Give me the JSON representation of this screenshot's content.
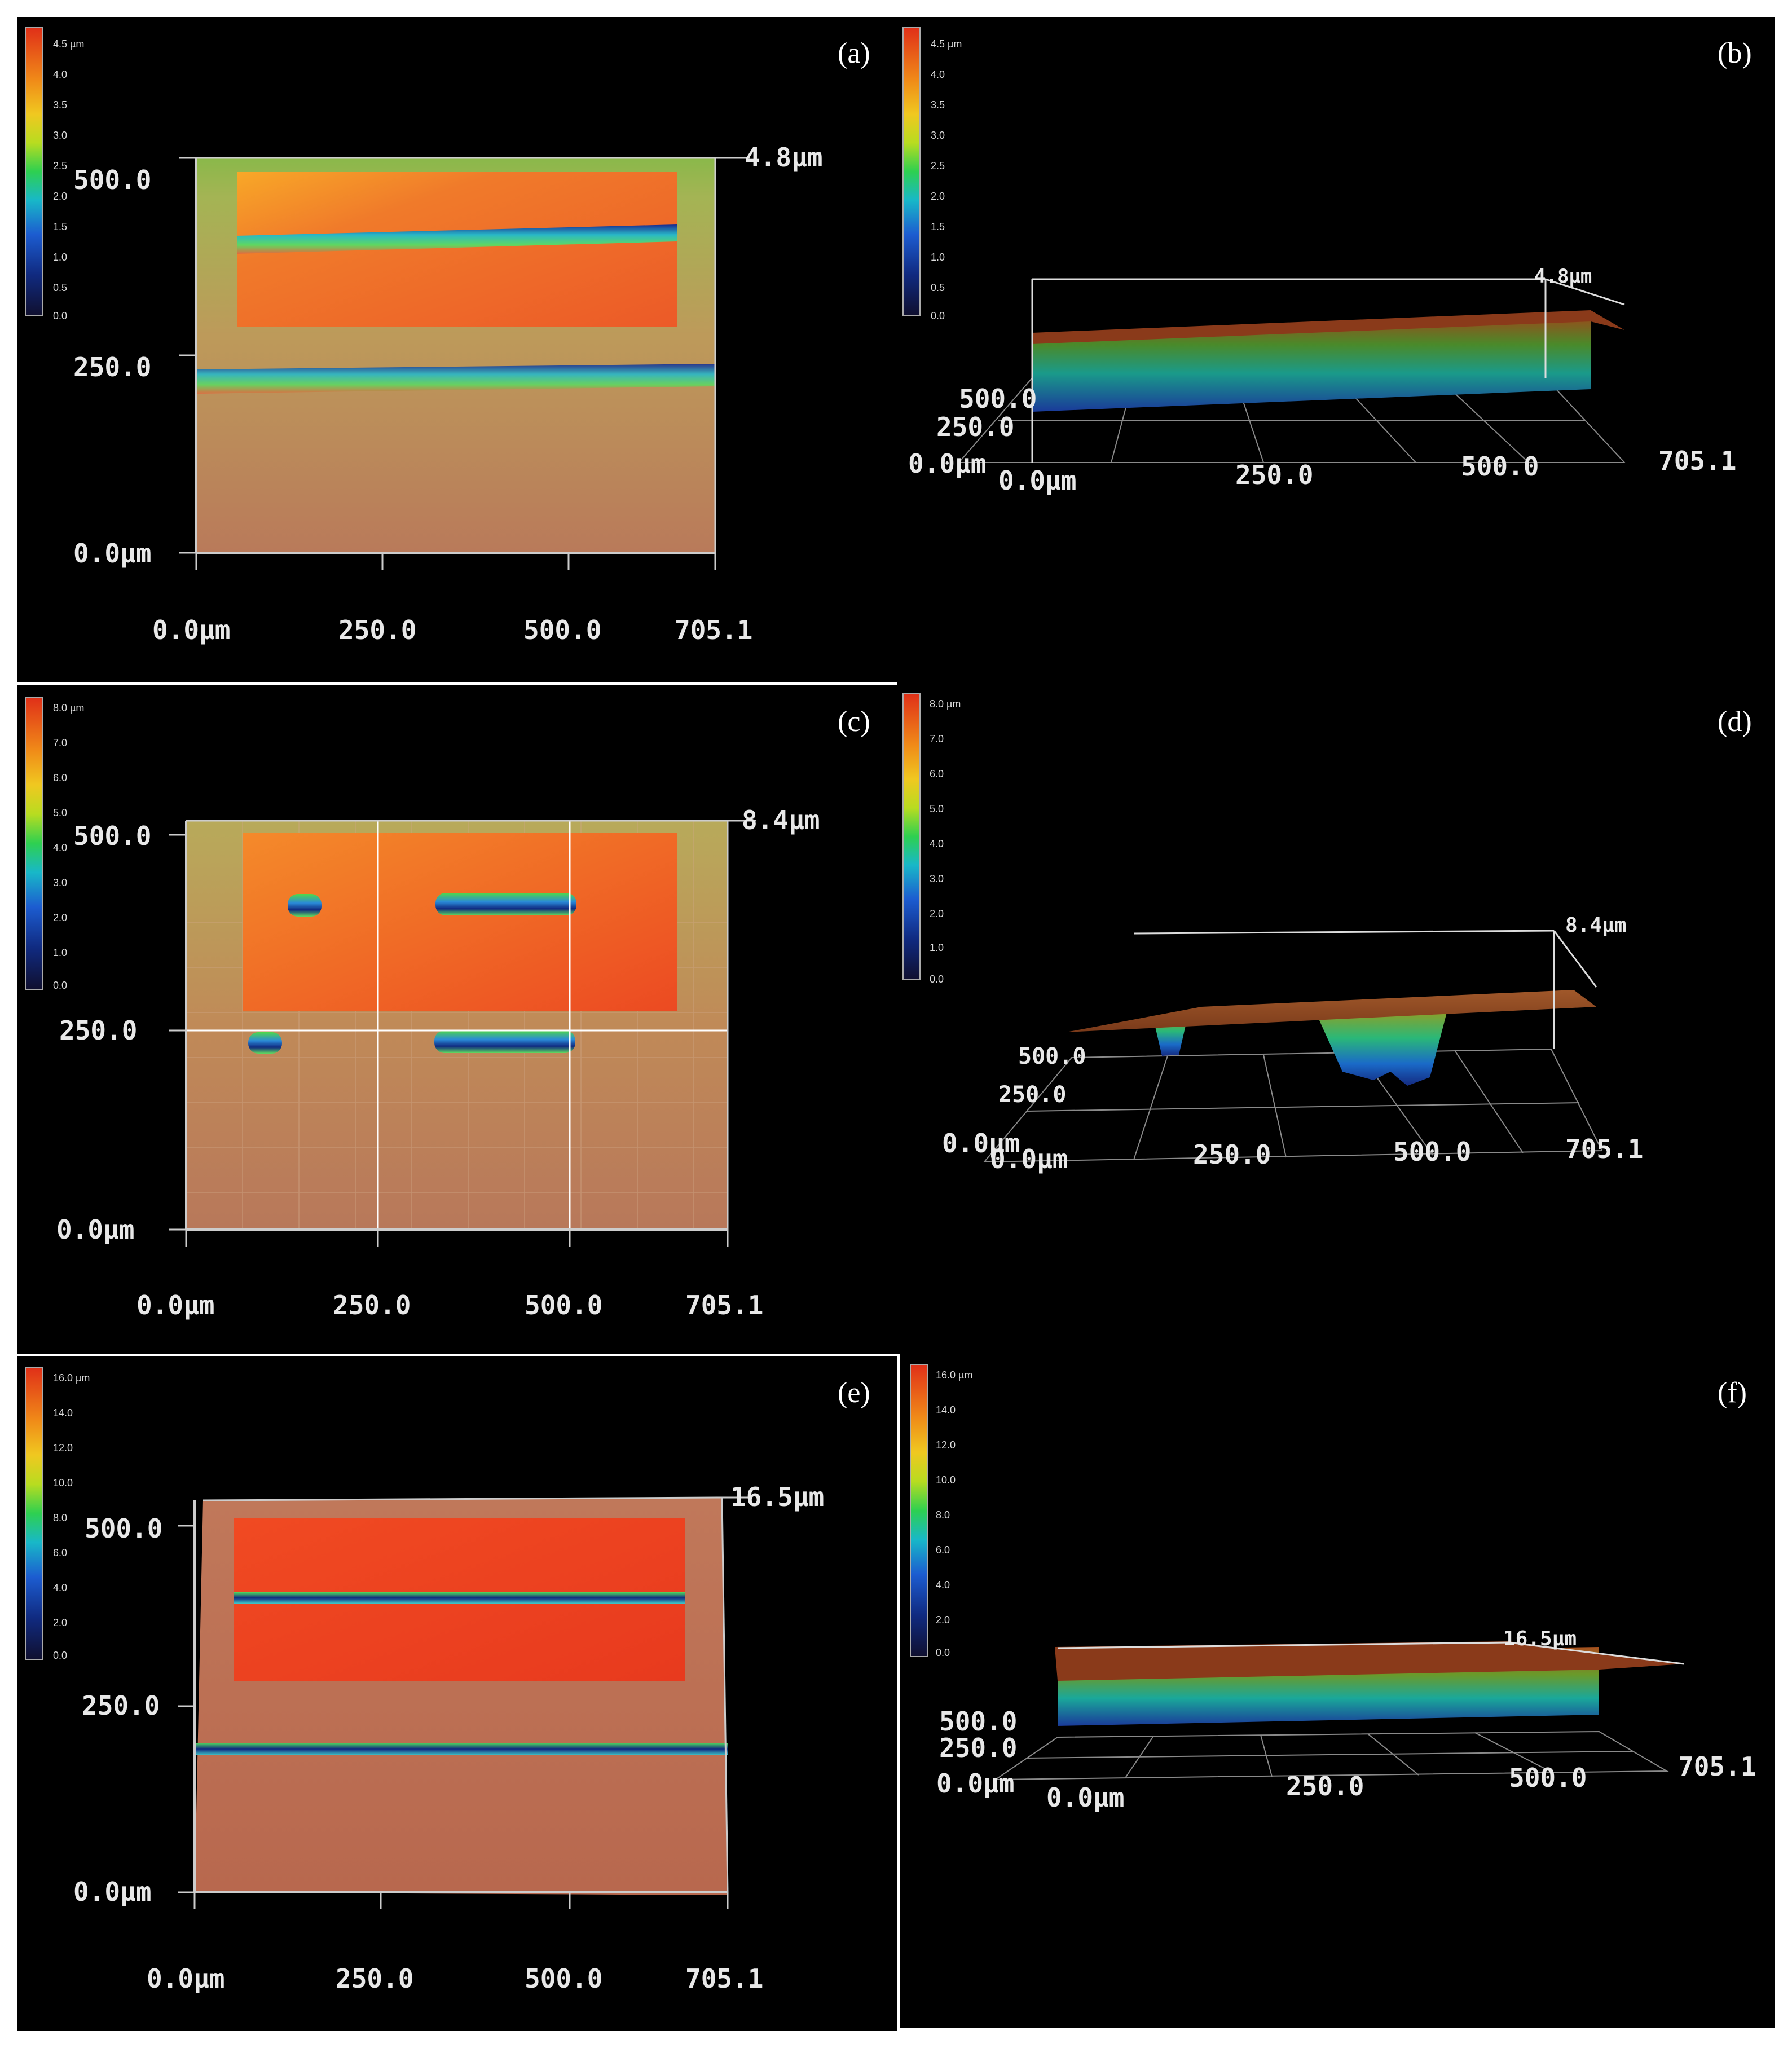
{
  "panels": [
    {
      "id": "a",
      "label": "(a)",
      "view": "2d",
      "colorbar": [
        "4.5 µm",
        "4.0",
        "3.5",
        "3.0",
        "2.5",
        "2.0",
        "1.5",
        "1.0",
        "0.5",
        "0.0"
      ],
      "max_height": "4.8µm",
      "x_ticks": [
        "0.0µm",
        "250.0",
        "500.0",
        "705.1"
      ],
      "y_ticks": [
        "500.0",
        "250.0",
        "0.0µm"
      ]
    },
    {
      "id": "b",
      "label": "(b)",
      "view": "3d",
      "colorbar": [
        "4.5 µm",
        "4.0",
        "3.5",
        "3.0",
        "2.5",
        "2.0",
        "1.5",
        "1.0",
        "0.5",
        "0.0"
      ],
      "max_height": "4.8µm",
      "x_ticks": [
        "0.0µm",
        "250.0",
        "500.0",
        "705.1"
      ],
      "y_ticks": [
        "500.0",
        "250.0",
        "0.0µm"
      ]
    },
    {
      "id": "c",
      "label": "(c)",
      "view": "2d",
      "colorbar": [
        "8.0 µm",
        "7.0",
        "6.0",
        "5.0",
        "4.0",
        "3.0",
        "2.0",
        "1.0",
        "0.0"
      ],
      "max_height": "8.4µm",
      "x_ticks": [
        "0.0µm",
        "250.0",
        "500.0",
        "705.1"
      ],
      "y_ticks": [
        "500.0",
        "250.0",
        "0.0µm"
      ]
    },
    {
      "id": "d",
      "label": "(d)",
      "view": "3d",
      "colorbar": [
        "8.0 µm",
        "7.0",
        "6.0",
        "5.0",
        "4.0",
        "3.0",
        "2.0",
        "1.0",
        "0.0"
      ],
      "max_height": "8.4µm",
      "x_ticks": [
        "0.0µm",
        "250.0",
        "500.0",
        "705.1"
      ],
      "y_ticks": [
        "500.0",
        "250.0",
        "0.0µm"
      ]
    },
    {
      "id": "e",
      "label": "(e)",
      "view": "2d",
      "colorbar": [
        "16.0 µm",
        "14.0",
        "12.0",
        "10.0",
        "8.0",
        "6.0",
        "4.0",
        "2.0",
        "0.0"
      ],
      "max_height": "16.5µm",
      "x_ticks": [
        "0.0µm",
        "250.0",
        "500.0",
        "705.1"
      ],
      "y_ticks": [
        "500.0",
        "250.0",
        "0.0µm"
      ]
    },
    {
      "id": "f",
      "label": "(f)",
      "view": "3d",
      "colorbar": [
        "16.0 µm",
        "14.0",
        "12.0",
        "10.0",
        "8.0",
        "6.0",
        "4.0",
        "2.0",
        "0.0"
      ],
      "max_height": "16.5µm",
      "x_ticks": [
        "0.0µm",
        "250.0",
        "500.0",
        "705.1"
      ],
      "y_ticks": [
        "500.0",
        "250.0",
        "0.0µm"
      ]
    }
  ]
}
